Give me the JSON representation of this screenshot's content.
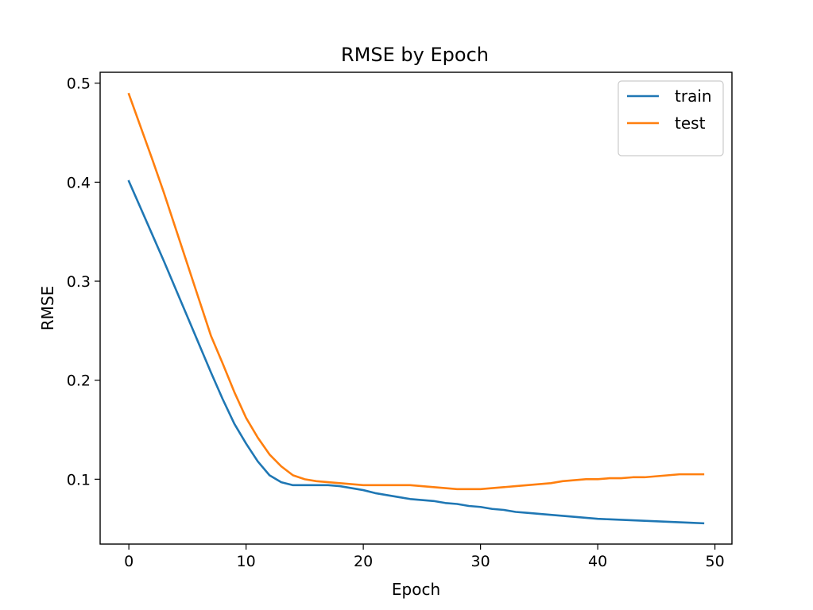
{
  "chart_data": {
    "type": "line",
    "title": "RMSE by Epoch",
    "xlabel": "Epoch",
    "ylabel": "RMSE",
    "xlim": [
      -2.45,
      51.45
    ],
    "ylim": [
      0.0345,
      0.511
    ],
    "xticks": [
      0,
      10,
      20,
      30,
      40,
      50
    ],
    "yticks": [
      0.1,
      0.2,
      0.3,
      0.4,
      0.5
    ],
    "grid": false,
    "legend_position": "upper right",
    "series": [
      {
        "name": "train",
        "color": "#1f77b4",
        "x": [
          0,
          1,
          2,
          3,
          4,
          5,
          6,
          7,
          8,
          9,
          10,
          11,
          12,
          13,
          14,
          15,
          16,
          17,
          18,
          19,
          20,
          21,
          22,
          23,
          24,
          25,
          26,
          27,
          28,
          29,
          30,
          31,
          32,
          33,
          34,
          35,
          36,
          37,
          38,
          39,
          40,
          41,
          42,
          43,
          44,
          45,
          46,
          47,
          48,
          49
        ],
        "values": [
          0.401,
          0.374,
          0.347,
          0.32,
          0.292,
          0.264,
          0.236,
          0.208,
          0.181,
          0.156,
          0.136,
          0.118,
          0.104,
          0.097,
          0.094,
          0.094,
          0.094,
          0.094,
          0.093,
          0.091,
          0.089,
          0.086,
          0.084,
          0.082,
          0.08,
          0.079,
          0.078,
          0.076,
          0.075,
          0.073,
          0.072,
          0.07,
          0.069,
          0.067,
          0.066,
          0.065,
          0.064,
          0.063,
          0.062,
          0.061,
          0.06,
          0.0595,
          0.059,
          0.0585,
          0.058,
          0.0575,
          0.057,
          0.0565,
          0.056,
          0.0555
        ]
      },
      {
        "name": "test",
        "color": "#ff7f0e",
        "x": [
          0,
          1,
          2,
          3,
          4,
          5,
          6,
          7,
          8,
          9,
          10,
          11,
          12,
          13,
          14,
          15,
          16,
          17,
          18,
          19,
          20,
          21,
          22,
          23,
          24,
          25,
          26,
          27,
          28,
          29,
          30,
          31,
          32,
          33,
          34,
          35,
          36,
          37,
          38,
          39,
          40,
          41,
          42,
          43,
          44,
          45,
          46,
          47,
          48,
          49
        ],
        "values": [
          0.489,
          0.456,
          0.423,
          0.389,
          0.353,
          0.317,
          0.281,
          0.245,
          0.217,
          0.188,
          0.162,
          0.142,
          0.125,
          0.113,
          0.104,
          0.1,
          0.098,
          0.097,
          0.096,
          0.095,
          0.094,
          0.094,
          0.094,
          0.094,
          0.094,
          0.093,
          0.092,
          0.091,
          0.09,
          0.09,
          0.09,
          0.091,
          0.092,
          0.093,
          0.094,
          0.095,
          0.096,
          0.098,
          0.099,
          0.1,
          0.1,
          0.101,
          0.101,
          0.102,
          0.102,
          0.103,
          0.104,
          0.105,
          0.105,
          0.105
        ]
      }
    ]
  }
}
